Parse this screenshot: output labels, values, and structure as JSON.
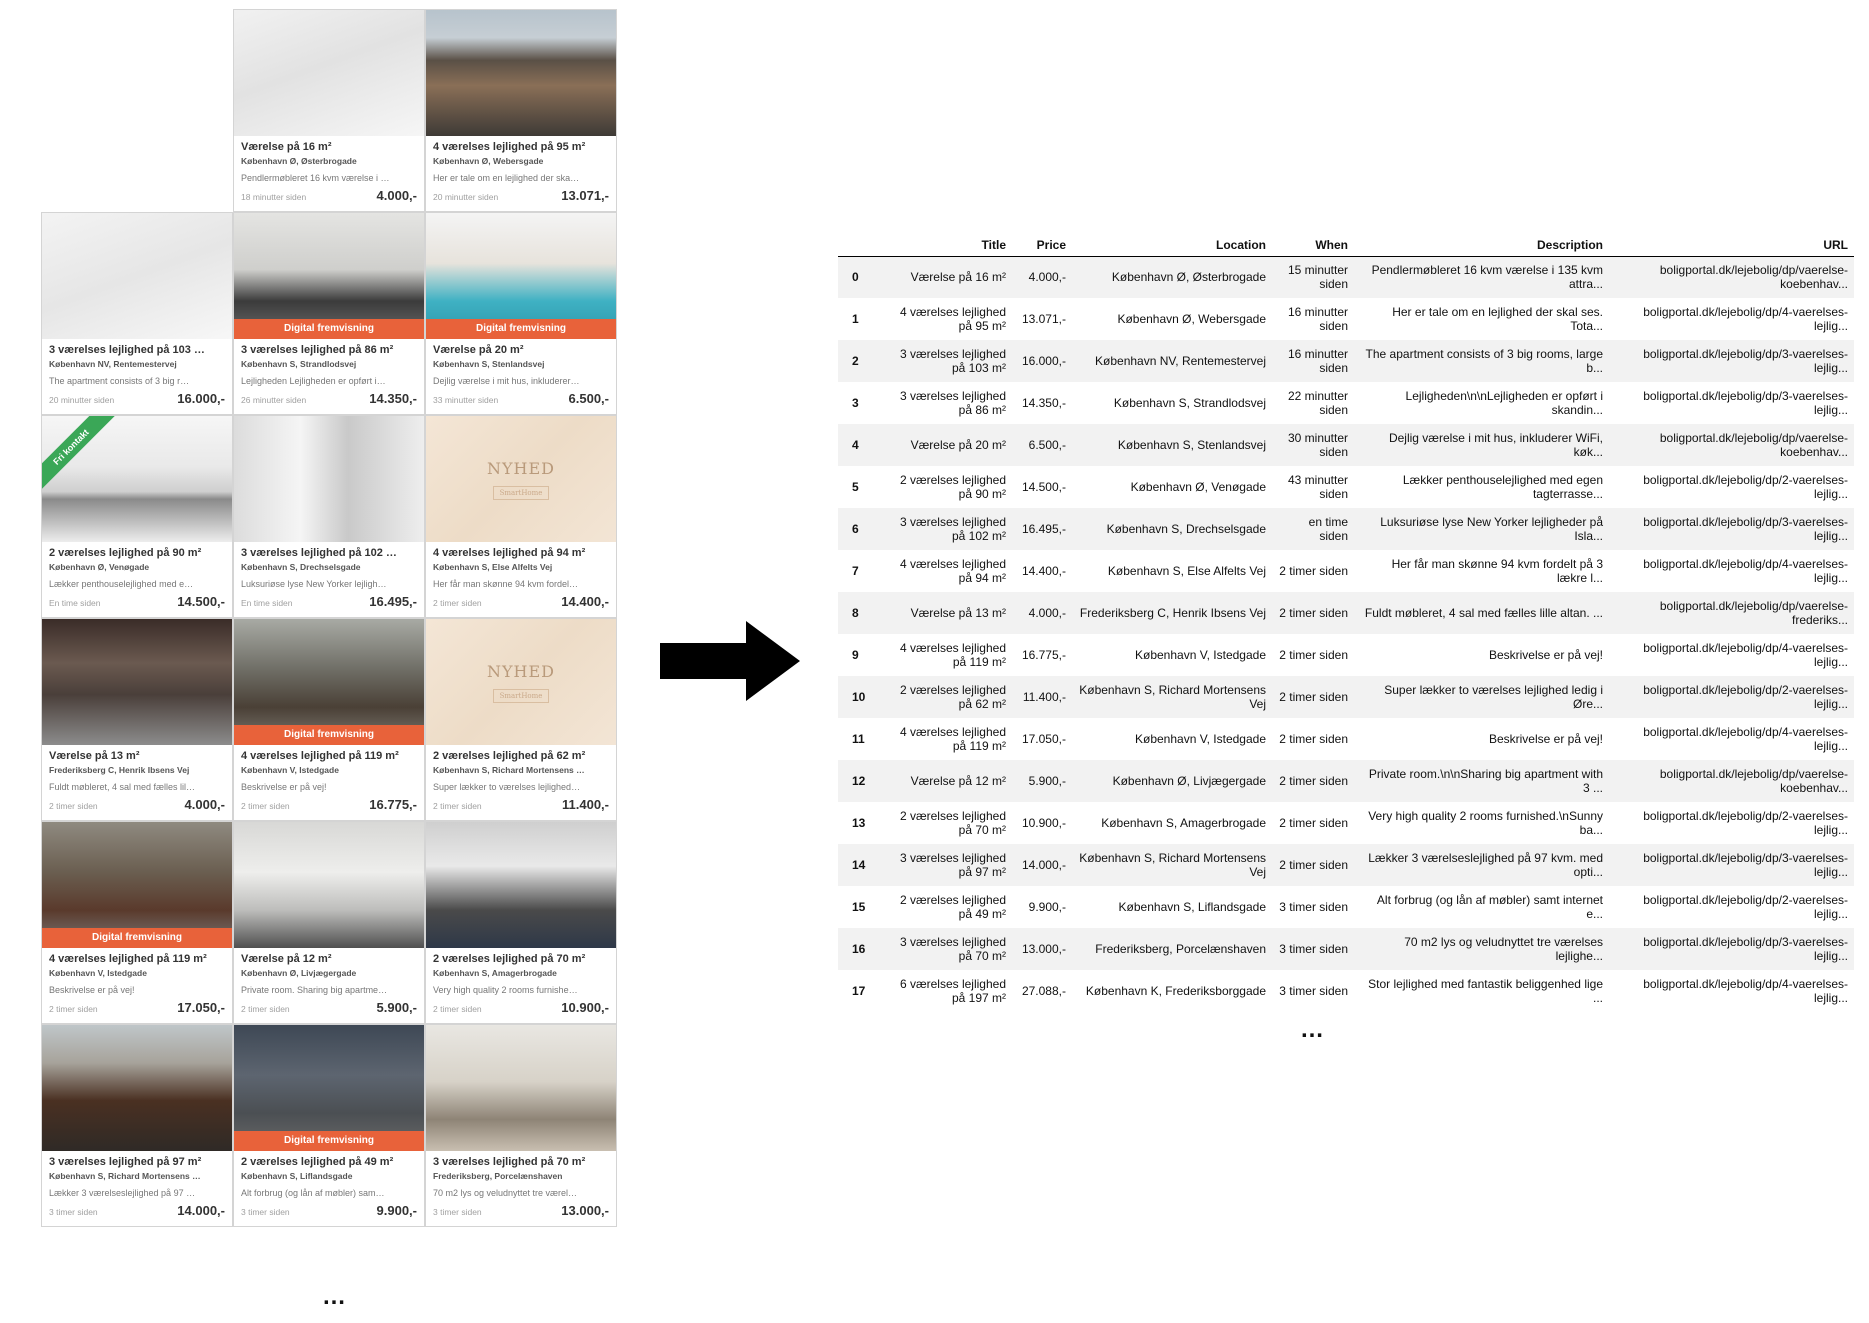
{
  "listings": [
    {
      "title": "Værelse på 16 m²",
      "address": "København Ø, Østerbrogade",
      "description": "Pendlermøbleret 16 kvm værelse i …",
      "time": "18 minutter siden",
      "price": "4.000,-",
      "badge": "",
      "ribbon": "",
      "nyhed": false,
      "nyhed_word": "",
      "nyhed_mark": ""
    },
    {
      "title": "4 værelses lejlighed på 95 m²",
      "address": "København Ø, Webersgade",
      "description": "Her er tale om en lejlighed der ska…",
      "time": "20 minutter siden",
      "price": "13.071,-",
      "badge": "",
      "ribbon": "",
      "nyhed": false,
      "nyhed_word": "",
      "nyhed_mark": ""
    },
    {
      "title": "3 værelses lejlighed på 103 …",
      "address": "København NV, Rentemestervej",
      "description": "The apartment consists of 3 big r…",
      "time": "20 minutter siden",
      "price": "16.000,-",
      "badge": "",
      "ribbon": "",
      "nyhed": false,
      "nyhed_word": "",
      "nyhed_mark": ""
    },
    {
      "title": "3 værelses lejlighed på 86 m²",
      "address": "København S, Strandlodsvej",
      "description": "Lejligheden Lejligheden er opført i…",
      "time": "26 minutter siden",
      "price": "14.350,-",
      "badge": "Digital fremvisning",
      "ribbon": "",
      "nyhed": false,
      "nyhed_word": "",
      "nyhed_mark": ""
    },
    {
      "title": "Værelse på 20 m²",
      "address": "København S, Stenlandsvej",
      "description": "Dejlig værelse i mit hus, inkluderer…",
      "time": "33 minutter siden",
      "price": "6.500,-",
      "badge": "Digital fremvisning",
      "ribbon": "",
      "nyhed": false,
      "nyhed_word": "",
      "nyhed_mark": ""
    },
    {
      "title": "2 værelses lejlighed på 90 m²",
      "address": "København Ø, Venøgade",
      "description": "Lækker penthouselejlighed med e…",
      "time": "En time siden",
      "price": "14.500,-",
      "badge": "",
      "ribbon": "Fri kontakt",
      "nyhed": false,
      "nyhed_word": "",
      "nyhed_mark": ""
    },
    {
      "title": "3 værelses lejlighed på 102 …",
      "address": "København S, Drechselsgade",
      "description": "Luksuriøse lyse New Yorker lejligh…",
      "time": "En time siden",
      "price": "16.495,-",
      "badge": "",
      "ribbon": "",
      "nyhed": false,
      "nyhed_word": "",
      "nyhed_mark": ""
    },
    {
      "title": "4 værelses lejlighed på 94 m²",
      "address": "København S, Else Alfelts Vej",
      "description": "Her får man skønne 94 kvm fordel…",
      "time": "2 timer siden",
      "price": "14.400,-",
      "badge": "",
      "ribbon": "",
      "nyhed": true,
      "nyhed_word": "NYHED",
      "nyhed_mark": "SmartHome"
    },
    {
      "title": "Værelse på 13 m²",
      "address": "Frederiksberg C, Henrik Ibsens Vej",
      "description": "Fuldt møbleret, 4 sal med fælles lil…",
      "time": "2 timer siden",
      "price": "4.000,-",
      "badge": "",
      "ribbon": "",
      "nyhed": false,
      "nyhed_word": "",
      "nyhed_mark": ""
    },
    {
      "title": "4 værelses lejlighed på 119 m²",
      "address": "København V, Istedgade",
      "description": "Beskrivelse er på vej!",
      "time": "2 timer siden",
      "price": "16.775,-",
      "badge": "Digital fremvisning",
      "ribbon": "",
      "nyhed": false,
      "nyhed_word": "",
      "nyhed_mark": ""
    },
    {
      "title": "2 værelses lejlighed på 62 m²",
      "address": "København S, Richard Mortensens …",
      "description": "Super lækker to værelses lejlighed…",
      "time": "2 timer siden",
      "price": "11.400,-",
      "badge": "",
      "ribbon": "",
      "nyhed": true,
      "nyhed_word": "NYHED",
      "nyhed_mark": "SmartHome"
    },
    {
      "title": "4 værelses lejlighed på 119 m²",
      "address": "København V, Istedgade",
      "description": "Beskrivelse er på vej!",
      "time": "2 timer siden",
      "price": "17.050,-",
      "badge": "Digital fremvisning",
      "ribbon": "",
      "nyhed": false,
      "nyhed_word": "",
      "nyhed_mark": ""
    },
    {
      "title": "Værelse på 12 m²",
      "address": "København Ø, Livjægergade",
      "description": "Private room. Sharing big apartme…",
      "time": "2 timer siden",
      "price": "5.900,-",
      "badge": "",
      "ribbon": "",
      "nyhed": false,
      "nyhed_word": "",
      "nyhed_mark": ""
    },
    {
      "title": "2 værelses lejlighed på 70 m²",
      "address": "København S, Amagerbrogade",
      "description": "Very high quality 2 rooms furnishe…",
      "time": "2 timer siden",
      "price": "10.900,-",
      "badge": "",
      "ribbon": "",
      "nyhed": false,
      "nyhed_word": "",
      "nyhed_mark": ""
    },
    {
      "title": "3 værelses lejlighed på 97 m²",
      "address": "København S, Richard Mortensens …",
      "description": "Lækker 3 værelseslejlighed på 97 …",
      "time": "3 timer siden",
      "price": "14.000,-",
      "badge": "",
      "ribbon": "",
      "nyhed": false,
      "nyhed_word": "",
      "nyhed_mark": ""
    },
    {
      "title": "2 værelses lejlighed på 49 m²",
      "address": "København S, Liflandsgade",
      "description": "Alt forbrug (og lån af møbler) sam…",
      "time": "3 timer siden",
      "price": "9.900,-",
      "badge": "Digital fremvisning",
      "ribbon": "",
      "nyhed": false,
      "nyhed_word": "",
      "nyhed_mark": ""
    },
    {
      "title": "3 værelses lejlighed på 70 m²",
      "address": "Frederiksberg, Porcelænshaven",
      "description": "70 m2 lys og veludnyttet tre værel…",
      "time": "3 timer siden",
      "price": "13.000,-",
      "badge": "",
      "ribbon": "",
      "nyhed": false,
      "nyhed_word": "",
      "nyhed_mark": ""
    }
  ],
  "grid_ellipsis": "…",
  "table": {
    "headers": [
      "",
      "Title",
      "Price",
      "Location",
      "When",
      "Description",
      "URL"
    ],
    "rows": [
      [
        "0",
        "Værelse på 16 m²",
        "4.000,-",
        "København Ø, Østerbrogade",
        "15 minutter siden",
        "Pendlermøbleret 16 kvm værelse i 135 kvm attra...",
        "boligportal.dk/lejebolig/dp/vaerelse-koebenhav..."
      ],
      [
        "1",
        "4 værelses lejlighed på 95 m²",
        "13.071,-",
        "København Ø, Webersgade",
        "16 minutter siden",
        "Her er tale om en lejlighed der skal ses. Tota...",
        "boligportal.dk/lejebolig/dp/4-vaerelses-lejlig..."
      ],
      [
        "2",
        "3 værelses lejlighed på 103 m²",
        "16.000,-",
        "København NV, Rentemestervej",
        "16 minutter siden",
        "The apartment consists of 3 big rooms, large b...",
        "boligportal.dk/lejebolig/dp/3-vaerelses-lejlig..."
      ],
      [
        "3",
        "3 værelses lejlighed på 86 m²",
        "14.350,-",
        "København S, Strandlodsvej",
        "22 minutter siden",
        "Lejligheden\\n\\nLejligheden er opført i skandin...",
        "boligportal.dk/lejebolig/dp/3-vaerelses-lejlig..."
      ],
      [
        "4",
        "Værelse på 20 m²",
        "6.500,-",
        "København S, Stenlandsvej",
        "30 minutter siden",
        "Dejlig værelse i mit hus, inkluderer WiFi, køk...",
        "boligportal.dk/lejebolig/dp/vaerelse-koebenhav..."
      ],
      [
        "5",
        "2 værelses lejlighed på 90 m²",
        "14.500,-",
        "København Ø, Venøgade",
        "43 minutter siden",
        "Lækker penthouselejlighed med egen tagterrasse...",
        "boligportal.dk/lejebolig/dp/2-vaerelses-lejlig..."
      ],
      [
        "6",
        "3 værelses lejlighed på 102 m²",
        "16.495,-",
        "København S, Drechselsgade",
        "en time siden",
        "Luksuriøse lyse New Yorker lejligheder på Isla...",
        "boligportal.dk/lejebolig/dp/3-vaerelses-lejlig..."
      ],
      [
        "7",
        "4 værelses lejlighed på 94 m²",
        "14.400,-",
        "København S, Else Alfelts Vej",
        "2 timer siden",
        "Her får man skønne 94 kvm fordelt på 3 lækre l...",
        "boligportal.dk/lejebolig/dp/4-vaerelses-lejlig..."
      ],
      [
        "8",
        "Værelse på 13 m²",
        "4.000,-",
        "Frederiksberg C, Henrik Ibsens Vej",
        "2 timer siden",
        "Fuldt møbleret, 4 sal med fælles lille altan. ...",
        "boligportal.dk/lejebolig/dp/vaerelse-frederiks..."
      ],
      [
        "9",
        "4 værelses lejlighed på 119 m²",
        "16.775,-",
        "København V, Istedgade",
        "2 timer siden",
        "Beskrivelse er på vej!",
        "boligportal.dk/lejebolig/dp/4-vaerelses-lejlig..."
      ],
      [
        "10",
        "2 værelses lejlighed på 62 m²",
        "11.400,-",
        "København S, Richard Mortensens Vej",
        "2 timer siden",
        "Super lækker to værelses lejlighed ledig i Øre...",
        "boligportal.dk/lejebolig/dp/2-vaerelses-lejlig..."
      ],
      [
        "11",
        "4 værelses lejlighed på 119 m²",
        "17.050,-",
        "København V, Istedgade",
        "2 timer siden",
        "Beskrivelse er på vej!",
        "boligportal.dk/lejebolig/dp/4-vaerelses-lejlig..."
      ],
      [
        "12",
        "Værelse på 12 m²",
        "5.900,-",
        "København Ø, Livjægergade",
        "2 timer siden",
        "Private room.\\n\\nSharing big apartment with 3 ...",
        "boligportal.dk/lejebolig/dp/vaerelse-koebenhav..."
      ],
      [
        "13",
        "2 værelses lejlighed på 70 m²",
        "10.900,-",
        "København S, Amagerbrogade",
        "2 timer siden",
        "Very high quality 2 rooms furnished.\\nSunny ba...",
        "boligportal.dk/lejebolig/dp/2-vaerelses-lejlig..."
      ],
      [
        "14",
        "3 værelses lejlighed på 97 m²",
        "14.000,-",
        "København S, Richard Mortensens Vej",
        "2 timer siden",
        "Lækker 3 værelseslejlighed på 97 kvm. med opti...",
        "boligportal.dk/lejebolig/dp/3-vaerelses-lejlig..."
      ],
      [
        "15",
        "2 værelses lejlighed på 49 m²",
        "9.900,-",
        "København S, Liflandsgade",
        "3 timer siden",
        "Alt forbrug (og lån af møbler) samt internet e...",
        "boligportal.dk/lejebolig/dp/2-vaerelses-lejlig..."
      ],
      [
        "16",
        "3 værelses lejlighed på 70 m²",
        "13.000,-",
        "Frederiksberg, Porcelænshaven",
        "3 timer siden",
        "70 m2 lys og veludnyttet tre værelses lejlighe...",
        "boligportal.dk/lejebolig/dp/3-vaerelses-lejlig..."
      ],
      [
        "17",
        "6 værelses lejlighed på 197 m²",
        "27.088,-",
        "København K, Frederiksborggade",
        "3 timer siden",
        "Stor lejlighed med fantastik beliggenhed lige ...",
        "boligportal.dk/lejebolig/dp/4-vaerelses-lejlig..."
      ]
    ]
  },
  "table_ellipsis": "…",
  "colors": {
    "badge": "#e8623a",
    "ribbon": "#3aa757",
    "row_stripe": "#f2f2f2"
  },
  "arrow_icon": "right-arrow-icon"
}
